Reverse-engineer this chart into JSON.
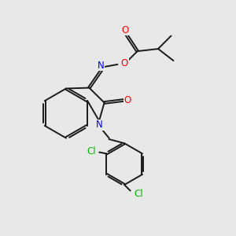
{
  "bg_color": "#e8e8e8",
  "atom_colors": {
    "N": "#0000ff",
    "O": "#ff0000",
    "Cl": "#00bb00"
  },
  "bond_color": "#1a1a1a",
  "figsize": [
    3.0,
    3.0
  ],
  "dpi": 100,
  "lw": 1.4,
  "fs": 8.5
}
